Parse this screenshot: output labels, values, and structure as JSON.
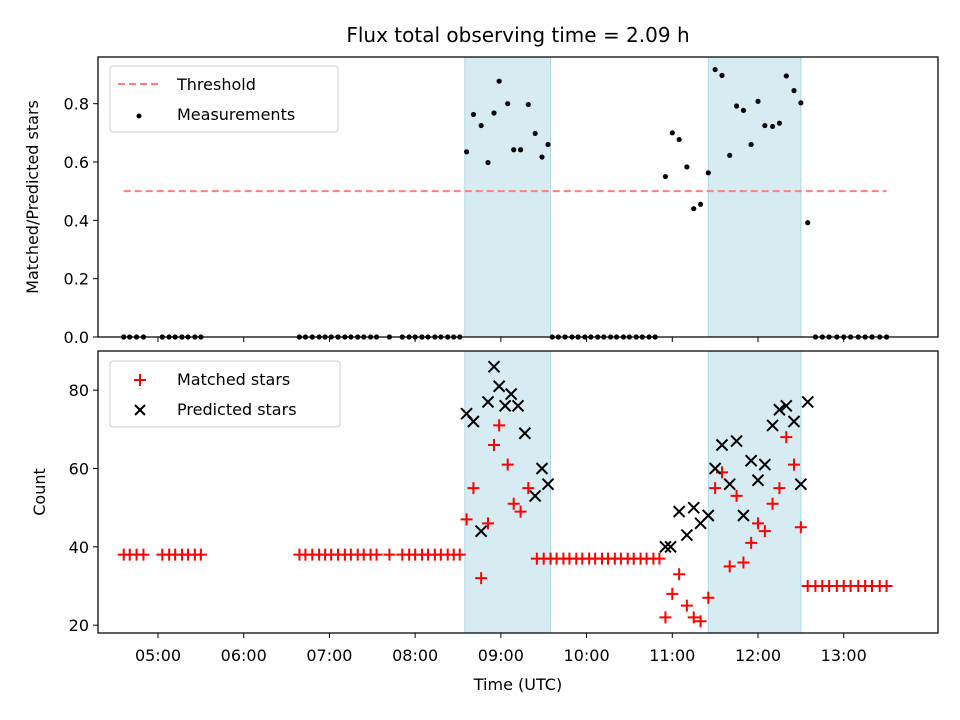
{
  "figure": {
    "title": "Flux total observing time = 2.09 h",
    "xlabel": "Time (UTC)"
  },
  "colors": {
    "threshold": "#ff7f7f",
    "measurements": "#000000",
    "matched": "#ff0000",
    "predicted": "#000000",
    "span_fill": "#add8e6"
  },
  "chart_data": [
    {
      "type": "scatter",
      "panel": "top",
      "ylabel": "Matched/Predicted stars",
      "x_unit": "hours UTC",
      "xlim": [
        4.3,
        14.1
      ],
      "ylim": [
        0,
        0.96
      ],
      "x_ticks": [
        5,
        6,
        7,
        8,
        9,
        10,
        11,
        12,
        13
      ],
      "x_tick_labels": [
        "05:00",
        "06:00",
        "07:00",
        "08:00",
        "09:00",
        "10:00",
        "11:00",
        "12:00",
        "13:00"
      ],
      "y_ticks": [
        0.0,
        0.2,
        0.4,
        0.6,
        0.8
      ],
      "y_tick_labels": [
        "0.0",
        "0.2",
        "0.4",
        "0.6",
        "0.8"
      ],
      "shaded_spans": [
        [
          8.58,
          9.58
        ],
        [
          11.42,
          12.5
        ]
      ],
      "legend_position": "upper left",
      "threshold": {
        "name": "Threshold",
        "value": 0.5,
        "x_range": [
          4.6,
          13.5
        ],
        "style": "dashed"
      },
      "series": [
        {
          "name": "Measurements",
          "marker": "dot",
          "points": [
            [
              4.6,
              0
            ],
            [
              4.67,
              0
            ],
            [
              4.75,
              0
            ],
            [
              4.83,
              0
            ],
            [
              5.05,
              0
            ],
            [
              5.13,
              0
            ],
            [
              5.2,
              0
            ],
            [
              5.28,
              0
            ],
            [
              5.35,
              0
            ],
            [
              5.43,
              0
            ],
            [
              5.5,
              0
            ],
            [
              6.65,
              0
            ],
            [
              6.72,
              0
            ],
            [
              6.8,
              0
            ],
            [
              6.88,
              0
            ],
            [
              6.95,
              0
            ],
            [
              7.02,
              0
            ],
            [
              7.1,
              0
            ],
            [
              7.18,
              0
            ],
            [
              7.25,
              0
            ],
            [
              7.33,
              0
            ],
            [
              7.4,
              0
            ],
            [
              7.48,
              0
            ],
            [
              7.55,
              0
            ],
            [
              7.7,
              0
            ],
            [
              7.85,
              0
            ],
            [
              7.93,
              0
            ],
            [
              8.0,
              0
            ],
            [
              8.08,
              0
            ],
            [
              8.15,
              0
            ],
            [
              8.23,
              0
            ],
            [
              8.3,
              0
            ],
            [
              8.38,
              0
            ],
            [
              8.45,
              0
            ],
            [
              8.52,
              0
            ],
            [
              8.6,
              0.635
            ],
            [
              8.68,
              0.763
            ],
            [
              8.77,
              0.725
            ],
            [
              8.85,
              0.598
            ],
            [
              8.92,
              0.768
            ],
            [
              8.98,
              0.877
            ],
            [
              9.08,
              0.8
            ],
            [
              9.15,
              0.642
            ],
            [
              9.23,
              0.642
            ],
            [
              9.32,
              0.797
            ],
            [
              9.4,
              0.698
            ],
            [
              9.48,
              0.617
            ],
            [
              9.55,
              0.66
            ],
            [
              9.6,
              0
            ],
            [
              9.67,
              0
            ],
            [
              9.75,
              0
            ],
            [
              9.83,
              0
            ],
            [
              9.9,
              0
            ],
            [
              9.98,
              0
            ],
            [
              10.05,
              0
            ],
            [
              10.13,
              0
            ],
            [
              10.2,
              0
            ],
            [
              10.28,
              0
            ],
            [
              10.35,
              0
            ],
            [
              10.43,
              0
            ],
            [
              10.5,
              0
            ],
            [
              10.58,
              0
            ],
            [
              10.65,
              0
            ],
            [
              10.73,
              0
            ],
            [
              10.8,
              0
            ],
            [
              10.92,
              0.55
            ],
            [
              11.0,
              0.7
            ],
            [
              11.08,
              0.677
            ],
            [
              11.17,
              0.583
            ],
            [
              11.25,
              0.44
            ],
            [
              11.33,
              0.455
            ],
            [
              11.42,
              0.563
            ],
            [
              11.5,
              0.917
            ],
            [
              11.58,
              0.897
            ],
            [
              11.67,
              0.623
            ],
            [
              11.75,
              0.792
            ],
            [
              11.83,
              0.777
            ],
            [
              11.92,
              0.66
            ],
            [
              12.0,
              0.808
            ],
            [
              12.08,
              0.725
            ],
            [
              12.17,
              0.722
            ],
            [
              12.25,
              0.733
            ],
            [
              12.33,
              0.895
            ],
            [
              12.42,
              0.845
            ],
            [
              12.5,
              0.803
            ],
            [
              12.58,
              0.392
            ],
            [
              12.67,
              0
            ],
            [
              12.75,
              0
            ],
            [
              12.83,
              0
            ],
            [
              12.92,
              0
            ],
            [
              13.0,
              0
            ],
            [
              13.08,
              0
            ],
            [
              13.17,
              0
            ],
            [
              13.25,
              0
            ],
            [
              13.33,
              0
            ],
            [
              13.42,
              0
            ],
            [
              13.5,
              0
            ]
          ]
        }
      ]
    },
    {
      "type": "scatter",
      "panel": "bottom",
      "ylabel": "Count",
      "x_unit": "hours UTC",
      "xlim": [
        4.3,
        14.1
      ],
      "ylim": [
        18,
        90
      ],
      "x_ticks": [
        5,
        6,
        7,
        8,
        9,
        10,
        11,
        12,
        13
      ],
      "x_tick_labels": [
        "05:00",
        "06:00",
        "07:00",
        "08:00",
        "09:00",
        "10:00",
        "11:00",
        "12:00",
        "13:00"
      ],
      "y_ticks": [
        20,
        40,
        60,
        80
      ],
      "y_tick_labels": [
        "20",
        "40",
        "60",
        "80"
      ],
      "shaded_spans": [
        [
          8.58,
          9.58
        ],
        [
          11.42,
          12.5
        ]
      ],
      "legend_position": "upper left",
      "series": [
        {
          "name": "Matched stars",
          "marker": "plus",
          "points": [
            [
              4.6,
              38
            ],
            [
              4.67,
              38
            ],
            [
              4.75,
              38
            ],
            [
              4.83,
              38
            ],
            [
              5.05,
              38
            ],
            [
              5.13,
              38
            ],
            [
              5.2,
              38
            ],
            [
              5.28,
              38
            ],
            [
              5.35,
              38
            ],
            [
              5.43,
              38
            ],
            [
              5.5,
              38
            ],
            [
              6.65,
              38
            ],
            [
              6.72,
              38
            ],
            [
              6.8,
              38
            ],
            [
              6.88,
              38
            ],
            [
              6.95,
              38
            ],
            [
              7.02,
              38
            ],
            [
              7.1,
              38
            ],
            [
              7.18,
              38
            ],
            [
              7.25,
              38
            ],
            [
              7.33,
              38
            ],
            [
              7.4,
              38
            ],
            [
              7.48,
              38
            ],
            [
              7.55,
              38
            ],
            [
              7.7,
              38
            ],
            [
              7.85,
              38
            ],
            [
              7.93,
              38
            ],
            [
              8.0,
              38
            ],
            [
              8.08,
              38
            ],
            [
              8.15,
              38
            ],
            [
              8.23,
              38
            ],
            [
              8.3,
              38
            ],
            [
              8.38,
              38
            ],
            [
              8.45,
              38
            ],
            [
              8.52,
              38
            ],
            [
              8.6,
              47
            ],
            [
              8.68,
              55
            ],
            [
              8.77,
              32
            ],
            [
              8.85,
              46
            ],
            [
              8.92,
              66
            ],
            [
              8.98,
              71
            ],
            [
              9.08,
              61
            ],
            [
              9.15,
              51
            ],
            [
              9.23,
              49
            ],
            [
              9.32,
              55
            ],
            [
              9.42,
              37
            ],
            [
              9.5,
              37
            ],
            [
              9.58,
              37
            ],
            [
              9.65,
              37
            ],
            [
              9.73,
              37
            ],
            [
              9.8,
              37
            ],
            [
              9.88,
              37
            ],
            [
              9.95,
              37
            ],
            [
              10.03,
              37
            ],
            [
              10.1,
              37
            ],
            [
              10.18,
              37
            ],
            [
              10.25,
              37
            ],
            [
              10.33,
              37
            ],
            [
              10.4,
              37
            ],
            [
              10.48,
              37
            ],
            [
              10.55,
              37
            ],
            [
              10.63,
              37
            ],
            [
              10.7,
              37
            ],
            [
              10.78,
              37
            ],
            [
              10.85,
              37
            ],
            [
              10.92,
              22
            ],
            [
              11.0,
              28
            ],
            [
              11.08,
              33
            ],
            [
              11.17,
              25
            ],
            [
              11.25,
              22
            ],
            [
              11.33,
              21
            ],
            [
              11.42,
              27
            ],
            [
              11.5,
              55
            ],
            [
              11.58,
              59
            ],
            [
              11.67,
              35
            ],
            [
              11.75,
              53
            ],
            [
              11.83,
              36
            ],
            [
              11.92,
              41
            ],
            [
              12.0,
              46
            ],
            [
              12.08,
              44
            ],
            [
              12.17,
              51
            ],
            [
              12.25,
              55
            ],
            [
              12.33,
              68
            ],
            [
              12.42,
              61
            ],
            [
              12.5,
              45
            ],
            [
              12.58,
              30
            ],
            [
              12.67,
              30
            ],
            [
              12.75,
              30
            ],
            [
              12.83,
              30
            ],
            [
              12.92,
              30
            ],
            [
              13.0,
              30
            ],
            [
              13.08,
              30
            ],
            [
              13.17,
              30
            ],
            [
              13.25,
              30
            ],
            [
              13.33,
              30
            ],
            [
              13.42,
              30
            ],
            [
              13.5,
              30
            ]
          ]
        },
        {
          "name": "Predicted stars",
          "marker": "x",
          "points": [
            [
              8.6,
              74
            ],
            [
              8.68,
              72
            ],
            [
              8.77,
              44
            ],
            [
              8.85,
              77
            ],
            [
              8.92,
              86
            ],
            [
              8.98,
              81
            ],
            [
              9.05,
              76
            ],
            [
              9.12,
              79
            ],
            [
              9.2,
              76
            ],
            [
              9.28,
              69
            ],
            [
              9.4,
              53
            ],
            [
              9.48,
              60
            ],
            [
              9.55,
              56
            ],
            [
              10.92,
              40
            ],
            [
              10.98,
              40
            ],
            [
              11.08,
              49
            ],
            [
              11.17,
              43
            ],
            [
              11.25,
              50
            ],
            [
              11.33,
              46
            ],
            [
              11.42,
              48
            ],
            [
              11.5,
              60
            ],
            [
              11.58,
              66
            ],
            [
              11.67,
              56
            ],
            [
              11.75,
              67
            ],
            [
              11.83,
              48
            ],
            [
              11.92,
              62
            ],
            [
              12.0,
              57
            ],
            [
              12.08,
              61
            ],
            [
              12.17,
              71
            ],
            [
              12.25,
              75
            ],
            [
              12.33,
              76
            ],
            [
              12.42,
              72
            ],
            [
              12.5,
              56
            ],
            [
              12.58,
              77
            ]
          ]
        }
      ]
    }
  ]
}
